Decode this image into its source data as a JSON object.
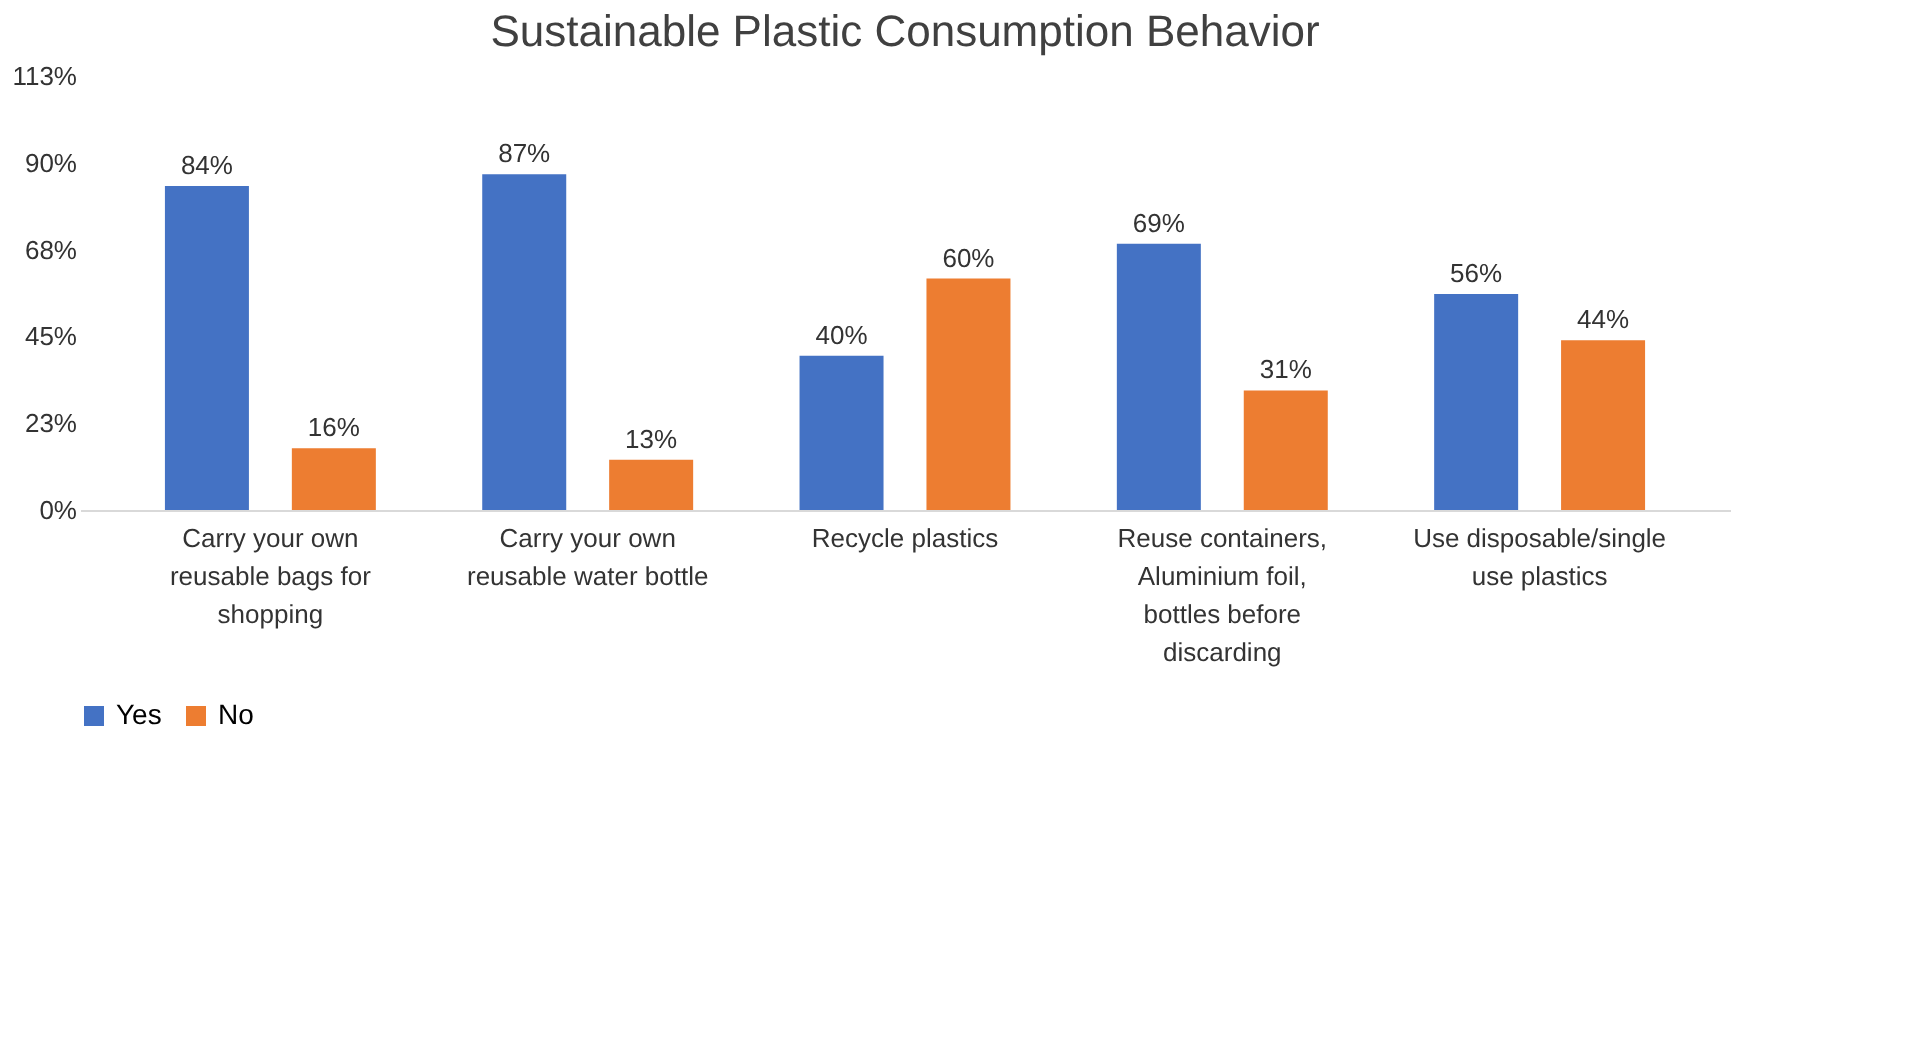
{
  "chart_data": {
    "type": "bar",
    "title": "Sustainable Plastic Consumption Behavior",
    "categories": [
      "Carry your own reusable bags for shopping",
      "Carry your own reusable water bottle",
      "Recycle plastics",
      "Reuse containers, Aluminium foil, bottles before discarding",
      "Use disposable/single use plastics"
    ],
    "series": [
      {
        "name": "Yes",
        "color": "#4472c4",
        "values": [
          84,
          87,
          40,
          69,
          56
        ],
        "value_labels": [
          "84%",
          "87%",
          "40%",
          "69%",
          "56%"
        ]
      },
      {
        "name": "No",
        "color": "#ed7d31",
        "values": [
          16,
          13,
          60,
          31,
          44
        ],
        "value_labels": [
          "16%",
          "13%",
          "60%",
          "31%",
          "44%"
        ]
      }
    ],
    "ylim": [
      0,
      112.5
    ],
    "yticks": [
      {
        "value": 0,
        "label": "0%"
      },
      {
        "value": 22.5,
        "label": "23%"
      },
      {
        "value": 45,
        "label": "45%"
      },
      {
        "value": 67.5,
        "label": "68%"
      },
      {
        "value": 90,
        "label": "90%"
      },
      {
        "value": 112.5,
        "label": "113%"
      }
    ],
    "grid": false,
    "legend": "bottom"
  }
}
